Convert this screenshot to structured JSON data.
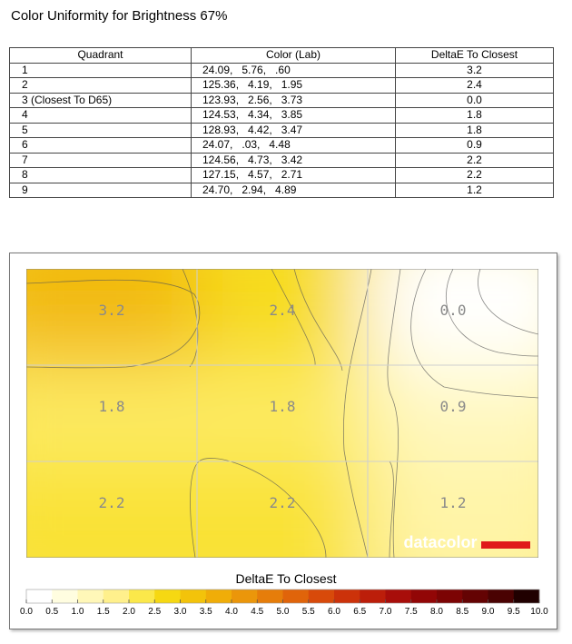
{
  "title": "Color Uniformity for Brightness 67%",
  "table": {
    "headers": [
      "Quadrant",
      "Color (Lab)",
      "DeltaE To Closest"
    ],
    "rows": [
      {
        "quadrant": "1",
        "lab": "24.09,   5.76,   .60",
        "delta": "3.2"
      },
      {
        "quadrant": "2",
        "lab": "125.36,   4.19,   1.95",
        "delta": "2.4"
      },
      {
        "quadrant": "3 (Closest To D65)",
        "lab": "123.93,   2.56,   3.73",
        "delta": "0.0"
      },
      {
        "quadrant": "4",
        "lab": "124.53,   4.34,   3.85",
        "delta": "1.8"
      },
      {
        "quadrant": "5",
        "lab": "128.93,   4.42,   3.47",
        "delta": "1.8"
      },
      {
        "quadrant": "6",
        "lab": "24.07,   .03,   4.48",
        "delta": "0.9"
      },
      {
        "quadrant": "7",
        "lab": "124.56,   4.73,   3.42",
        "delta": "2.2"
      },
      {
        "quadrant": "8",
        "lab": "127.15,   4.57,   2.71",
        "delta": "2.2"
      },
      {
        "quadrant": "9",
        "lab": "24.70,   2.94,   4.89",
        "delta": "1.2"
      }
    ]
  },
  "watermark": "datacolor",
  "chart_data": {
    "type": "heatmap",
    "rows": 3,
    "cols": 3,
    "values": [
      [
        3.2,
        2.4,
        0.0
      ],
      [
        1.8,
        1.8,
        0.9
      ],
      [
        2.2,
        2.2,
        1.2
      ]
    ],
    "colorbar": {
      "title": "DeltaE To Closest",
      "min": 0.0,
      "max": 10.0,
      "tick_labels": [
        "0.0",
        "0.5",
        "1.0",
        "1.5",
        "2.0",
        "2.5",
        "3.0",
        "3.5",
        "4.0",
        "4.5",
        "5.0",
        "5.5",
        "6.0",
        "6.5",
        "7.0",
        "7.5",
        "8.0",
        "8.5",
        "9.0",
        "9.5",
        "10.0"
      ],
      "colors": [
        "#ffffff",
        "#fffde0",
        "#fff7b8",
        "#fff08c",
        "#fbe84a",
        "#f6d812",
        "#f3c30a",
        "#f0ad08",
        "#eb960a",
        "#e67d0a",
        "#e0640a",
        "#d84a0a",
        "#cc320a",
        "#bc1e0a",
        "#a80e0a",
        "#920606",
        "#7c0404",
        "#640303",
        "#4a0202",
        "#200000"
      ]
    },
    "grid": true
  }
}
